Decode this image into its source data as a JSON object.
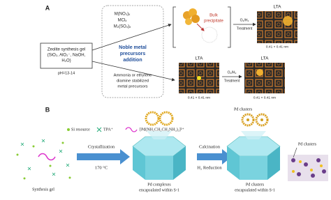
{
  "panel_a": {
    "label": "A",
    "gel": [
      "Zeolite synthesis gel",
      "(SiO₂, AlO₂⁻, NaOH,",
      "H₂O)"
    ],
    "ph": "pH=13-14",
    "salts": [
      "M(NO₃)ₓ",
      "MClₓ",
      "M₂(SO₄)ₓ"
    ],
    "addition": [
      "Noble metal",
      "precursors",
      "addition"
    ],
    "stabilized": [
      "Ammonia or ethylene",
      "diamine stabilized",
      "metal precursors"
    ],
    "bulk": [
      "Bulk",
      "precipitate"
    ],
    "treatments": [
      {
        "gas": "O₂/H₂",
        "label": "Treatment"
      },
      {
        "gas": "O₂/H₂",
        "label": "Treatment"
      }
    ],
    "structures": [
      {
        "name": "LTA",
        "size": "0.41 × 0.41 nm"
      },
      {
        "name": "LTA",
        "size": "0.41 × 0.41 nm"
      },
      {
        "name": "LTA",
        "size": "0.41 × 0.41 nm"
      }
    ]
  },
  "panel_b": {
    "label": "B",
    "legend": [
      "Si resource",
      "TPA⁺",
      "[Pd(NH₂CH₂CH₂NH₂)₂]²⁺"
    ],
    "steps": [
      {
        "top": "Crystallization",
        "bottom": "170 °C"
      },
      {
        "top": "Calcination",
        "bottom": "H₂ Reduction"
      }
    ],
    "pd_clusters": [
      "Pd clusters",
      "Pd clusters"
    ],
    "captions": [
      [
        "Synthesis gel"
      ],
      [
        "Pd complexes",
        "encapsulated within S-1"
      ],
      [
        "Pd clusters",
        "encapsulated within S-1"
      ]
    ]
  }
}
